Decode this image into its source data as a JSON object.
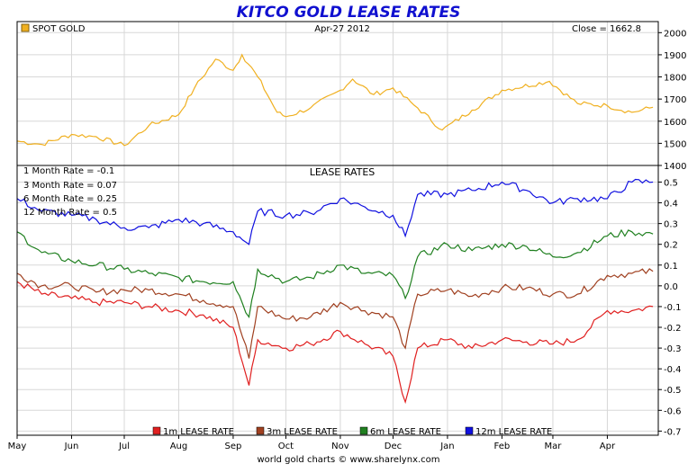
{
  "header": {
    "title": "KITCO GOLD LEASE RATES"
  },
  "footer": {
    "credit": "world gold charts © www.sharelynx.com"
  },
  "chart_data": [
    {
      "type": "line",
      "panel": "top",
      "legend": "SPOT GOLD",
      "date_label": "Apr-27 2012",
      "close_label": "Close = 1662.8",
      "ylim": [
        1400,
        2050
      ],
      "yticks": [
        "2000",
        "1900",
        "1800",
        "1700",
        "1600",
        "1500",
        "1400"
      ],
      "colors": {
        "gold": "#f0b020"
      },
      "x": [
        "2011-05-01",
        "2011-05-15",
        "2011-06-01",
        "2011-06-15",
        "2011-07-01",
        "2011-07-15",
        "2011-08-01",
        "2011-08-10",
        "2011-08-22",
        "2011-09-01",
        "2011-09-06",
        "2011-09-15",
        "2011-09-26",
        "2011-10-01",
        "2011-10-15",
        "2011-11-01",
        "2011-11-08",
        "2011-11-20",
        "2011-12-01",
        "2011-12-15",
        "2011-12-29",
        "2012-01-15",
        "2012-02-01",
        "2012-02-28",
        "2012-03-15",
        "2012-04-01",
        "2012-04-15",
        "2012-04-27"
      ],
      "series": [
        {
          "values": [
            1510,
            1495,
            1540,
            1530,
            1490,
            1580,
            1630,
            1750,
            1880,
            1830,
            1900,
            1800,
            1640,
            1620,
            1660,
            1740,
            1790,
            1720,
            1750,
            1660,
            1560,
            1650,
            1740,
            1780,
            1680,
            1670,
            1640,
            1662.8
          ]
        }
      ]
    },
    {
      "type": "line",
      "panel": "bottom",
      "subtitle": "LEASE RATES",
      "notes": [
        "1 Month Rate = -0.1",
        "3 Month Rate = 0.07",
        "6 Month Rate = 0.25",
        "12 Month Rate = 0.5"
      ],
      "ylim": [
        -0.72,
        0.58
      ],
      "yticks": [
        "0.5",
        "0.4",
        "0.3",
        "0.2",
        "0.1",
        "0.0",
        "-0.1",
        "-0.2",
        "-0.3",
        "-0.4",
        "-0.5",
        "-0.6",
        "-0.7"
      ],
      "xticks": [
        "May",
        "Jun",
        "Jul",
        "Aug",
        "Sep",
        "Oct",
        "Nov",
        "Dec",
        "Jan",
        "Feb",
        "Mar",
        "Apr"
      ],
      "xtick_dates": [
        "2011-05-01",
        "2011-06-01",
        "2011-07-01",
        "2011-08-01",
        "2011-09-01",
        "2011-10-01",
        "2011-11-01",
        "2011-12-01",
        "2012-01-01",
        "2012-02-01",
        "2012-03-01",
        "2012-04-01"
      ],
      "xlim": [
        "2011-05-01",
        "2012-04-30"
      ],
      "x": [
        "2011-05-01",
        "2011-05-15",
        "2011-06-01",
        "2011-06-15",
        "2011-07-01",
        "2011-07-15",
        "2011-08-01",
        "2011-08-15",
        "2011-09-01",
        "2011-09-10",
        "2011-09-15",
        "2011-10-01",
        "2011-10-15",
        "2011-11-01",
        "2011-11-15",
        "2011-12-01",
        "2011-12-08",
        "2011-12-15",
        "2012-01-01",
        "2012-01-15",
        "2012-02-01",
        "2012-02-15",
        "2012-03-01",
        "2012-03-15",
        "2012-04-01",
        "2012-04-15",
        "2012-04-27"
      ],
      "series": [
        {
          "name": "1m LEASE RATE",
          "color": "#e02020",
          "values": [
            0.02,
            -0.04,
            -0.06,
            -0.08,
            -0.08,
            -0.1,
            -0.12,
            -0.14,
            -0.2,
            -0.48,
            -0.26,
            -0.3,
            -0.28,
            -0.22,
            -0.28,
            -0.34,
            -0.56,
            -0.3,
            -0.26,
            -0.3,
            -0.26,
            -0.27,
            -0.28,
            -0.26,
            -0.12,
            -0.12,
            -0.1
          ]
        },
        {
          "name": "3m LEASE RATE",
          "color": "#a04020",
          "values": [
            0.06,
            0.0,
            0.0,
            -0.03,
            -0.02,
            -0.02,
            -0.04,
            -0.07,
            -0.1,
            -0.35,
            -0.1,
            -0.16,
            -0.15,
            -0.08,
            -0.12,
            -0.15,
            -0.3,
            -0.04,
            -0.02,
            -0.05,
            -0.01,
            -0.01,
            -0.04,
            -0.04,
            0.05,
            0.06,
            0.07
          ]
        },
        {
          "name": "6m LEASE RATE",
          "color": "#208020",
          "values": [
            0.26,
            0.16,
            0.12,
            0.1,
            0.08,
            0.06,
            0.04,
            0.02,
            0.02,
            -0.15,
            0.08,
            0.02,
            0.04,
            0.1,
            0.06,
            0.05,
            -0.06,
            0.14,
            0.2,
            0.17,
            0.2,
            0.19,
            0.14,
            0.16,
            0.24,
            0.26,
            0.25
          ]
        },
        {
          "name": "12m LEASE RATE",
          "color": "#1010e0",
          "values": [
            0.42,
            0.36,
            0.34,
            0.32,
            0.28,
            0.28,
            0.32,
            0.3,
            0.26,
            0.2,
            0.36,
            0.34,
            0.35,
            0.42,
            0.38,
            0.34,
            0.24,
            0.44,
            0.44,
            0.46,
            0.5,
            0.46,
            0.4,
            0.42,
            0.42,
            0.5,
            0.5
          ]
        }
      ]
    }
  ]
}
